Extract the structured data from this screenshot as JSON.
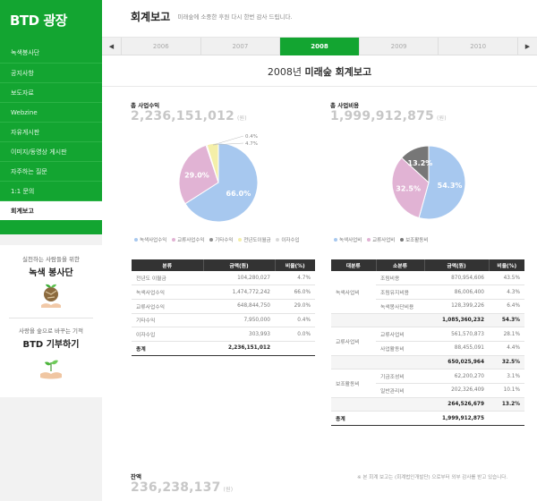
{
  "brand": "BTD 광장",
  "nav": [
    {
      "label": "녹색봉사단",
      "active": false
    },
    {
      "label": "공지사항",
      "active": false
    },
    {
      "label": "보도자료",
      "active": false
    },
    {
      "label": "Webzine",
      "active": false
    },
    {
      "label": "자유게시판",
      "active": false
    },
    {
      "label": "이미지/동영상 게시판",
      "active": false
    },
    {
      "label": "자주하는 질문",
      "active": false
    },
    {
      "label": "1:1 문의",
      "active": false
    },
    {
      "label": "회계보고",
      "active": true
    }
  ],
  "promo1": {
    "caption": "실천하는 사람들을 위한",
    "title": "녹색 봉사단"
  },
  "promo2": {
    "caption": "사랑을 숲으로 바꾸는 기적",
    "title": "BTD 기부하기"
  },
  "header": {
    "title": "회계보고",
    "subtitle": "미래숲에 소중한 후원 다시 한번 감사 드립니다."
  },
  "years": [
    {
      "label": "2006",
      "active": false
    },
    {
      "label": "2007",
      "active": false
    },
    {
      "label": "2008",
      "active": true
    },
    {
      "label": "2009",
      "active": false
    },
    {
      "label": "2010",
      "active": false
    }
  ],
  "report": {
    "year": "2008",
    "year_suffix": "년 ",
    "title": "미래숲 회계보고"
  },
  "income": {
    "label": "총 사업수익",
    "value": "2,236,151,012",
    "unit": "(원)",
    "slices": [
      {
        "name": "녹색사업수익",
        "pct": 66.0,
        "label": "66.0%",
        "color": "#a7c8ef"
      },
      {
        "name": "교류사업수익",
        "pct": 29.0,
        "label": "29.0%",
        "color": "#e1b3d4"
      },
      {
        "name": "기타수익",
        "pct": 0.4,
        "label": "",
        "color": "#8e8e8e"
      },
      {
        "name": "전년도이월금",
        "pct": 4.7,
        "label": "",
        "color": "#f4efa9"
      },
      {
        "name": "이자수입",
        "pct": 0.0,
        "label": "",
        "color": "#d9d9d9"
      }
    ],
    "callouts": [
      "0.4%",
      "4.7%"
    ],
    "legend": [
      "녹색사업수익",
      "교류사업수익",
      "기타수익",
      "전년도이월금",
      "이자수입"
    ],
    "table": {
      "headers": [
        "분류",
        "금액(원)",
        "비율(%)"
      ],
      "rows": [
        {
          "name": "전년도 이월금",
          "amount": "104,280,027",
          "ratio": "4.7%"
        },
        {
          "name": "녹색사업수익",
          "amount": "1,474,772,242",
          "ratio": "66.0%"
        },
        {
          "name": "교류사업수익",
          "amount": "648,844,750",
          "ratio": "29.0%"
        },
        {
          "name": "기타수익",
          "amount": "7,950,000",
          "ratio": "0.4%"
        },
        {
          "name": "이자수입",
          "amount": "303,993",
          "ratio": "0.0%"
        }
      ],
      "total": {
        "name": "총계",
        "amount": "2,236,151,012",
        "ratio": ""
      }
    }
  },
  "expense": {
    "label": "총 사업비용",
    "value": "1,999,912,875",
    "unit": "(원)",
    "slices": [
      {
        "name": "녹색사업비",
        "pct": 54.3,
        "label": "54.3%",
        "color": "#a7c8ef"
      },
      {
        "name": "교류사업비",
        "pct": 32.5,
        "label": "32.5%",
        "color": "#e1b3d4"
      },
      {
        "name": "보조활동비",
        "pct": 13.2,
        "label": "13.2%",
        "color": "#777777"
      }
    ],
    "legend": [
      "녹색사업비",
      "교류사업비",
      "보조활동비"
    ],
    "table": {
      "headers": [
        "대분류",
        "소분류",
        "금액(원)",
        "비율(%)"
      ],
      "groups": [
        {
          "name": "녹색사업비",
          "rows": [
            {
              "name": "조림비용",
              "amount": "870,954,606",
              "ratio": "43.5%"
            },
            {
              "name": "조림유지비용",
              "amount": "86,006,400",
              "ratio": "4.3%"
            },
            {
              "name": "녹색봉사단비용",
              "amount": "128,399,226",
              "ratio": "6.4%"
            }
          ],
          "subtotal": {
            "amount": "1,085,360,232",
            "ratio": "54.3%"
          }
        },
        {
          "name": "교류사업비",
          "rows": [
            {
              "name": "교류사업비",
              "amount": "561,570,873",
              "ratio": "28.1%"
            },
            {
              "name": "사업활동비",
              "amount": "88,455,091",
              "ratio": "4.4%"
            }
          ],
          "subtotal": {
            "amount": "650,025,964",
            "ratio": "32.5%"
          }
        },
        {
          "name": "보조활동비",
          "rows": [
            {
              "name": "기금조성비",
              "amount": "62,200,270",
              "ratio": "3.1%"
            },
            {
              "name": "일반관리비",
              "amount": "202,326,409",
              "ratio": "10.1%"
            }
          ],
          "subtotal": {
            "amount": "264,526,679",
            "ratio": "13.2%"
          }
        }
      ],
      "total": {
        "name": "총계",
        "amount": "1,999,912,875",
        "ratio": ""
      }
    }
  },
  "balance": {
    "label": "잔액",
    "value": "236,238,137",
    "unit": "(원)"
  },
  "footnote": "※ 본 회계 보고는 (회계법인개발단) 으로부터 외부 감사를 받고 있습니다."
}
